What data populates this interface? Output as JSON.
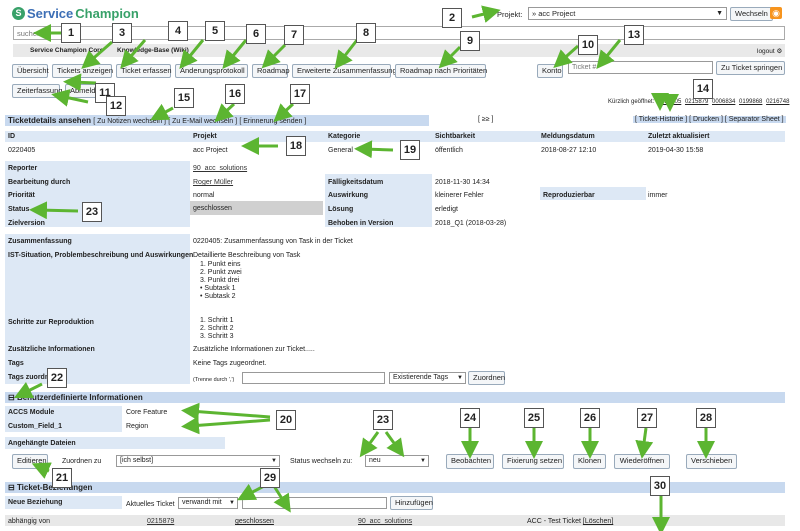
{
  "logo": {
    "service": "Service",
    "champion": "Champion"
  },
  "project": {
    "label": "Projekt:",
    "value": "» acc Project",
    "switch_label": "Wechseln"
  },
  "search": {
    "placeholder": "suchen"
  },
  "crumbs": {
    "core": "Service Champion Core",
    "kb": "Knowledge-Base (Wiki)",
    "logout": "logout ⚙"
  },
  "tabs": [
    "Übersicht",
    "Tickets anzeigen",
    "Ticket erfassen",
    "Änderungsprotokoll",
    "Roadmap",
    "Erweiterte Zusammenfassung",
    "Roadmap nach Prioritäten"
  ],
  "konto": "Konto",
  "ticket_num": {
    "placeholder": "Ticket #",
    "jump_label": "Zu Ticket springen"
  },
  "tabs2": [
    "Zeiterfassung",
    "Abmelden"
  ],
  "recent": {
    "label": "Kürzlich geöffnet:",
    "ids": [
      "0220405",
      "0215879",
      "0006834",
      "0199868",
      "0216748"
    ]
  },
  "details": {
    "title": "Ticketdetails ansehen",
    "link1": "[ Zu Notizen wechseln ]",
    "link2": "[ Zu E-Mail wechseln ]",
    "link3": "[ Erinnerung senden ]",
    "nav": "[ ≥≥ ]",
    "right_links": "[ Ticket-Historie ] [ Drucken ] [ Separator Sheet ]"
  },
  "head": {
    "id": "ID",
    "projekt": "Projekt",
    "kategorie": "Kategorie",
    "sichtbarkeit": "Sichtbarkeit",
    "meldungsdatum": "Meldungsdatum",
    "zuletzt": "Zuletzt aktualisiert"
  },
  "row": {
    "id": "0220405",
    "projekt": "acc Project",
    "kategorie": "General",
    "sichtbarkeit": "öffentlich",
    "meldungsdatum": "2018-08-27 12:10",
    "zuletzt": "2019-04-30 15:58"
  },
  "fields": {
    "reporter_l": "Reporter",
    "reporter": "90_acc_solutions",
    "bearb_l": "Bearbeitung durch",
    "bearb": "Roger Müller",
    "faellig_l": "Fälligkeitsdatum",
    "faellig": "2018-11-30 14:34",
    "prio_l": "Priorität",
    "prio": "normal",
    "ausw_l": "Auswirkung",
    "ausw": "kleinerer Fehler",
    "repro_l": "Reproduzierbar",
    "repro": "immer",
    "status_l": "Status",
    "status": "geschlossen",
    "loesung_l": "Lösung",
    "loesung": "erledigt",
    "ziel_l": "Zielversion",
    "behoben_l": "Behoben in Version",
    "behoben": "2018_Q1 (2018-03-28)",
    "zus_l": "Zusammenfassung",
    "zus": "0220405: Zusammenfassung von Task in der Ticket",
    "ist_l": "IST-Situation, Problembeschreibung und Auswirkungen",
    "ist_intro": "Detaillierte Beschreibung von Task",
    "ist_items": [
      "Punkt eins",
      "Punkt zwei",
      "Punkt drei"
    ],
    "ist_sub": [
      "Subtask 1",
      "Subtask 2"
    ],
    "schritte_l": "Schritte zur Reproduktion",
    "schritte": [
      "Schritt 1",
      "Schritt 2",
      "Schritt 3"
    ],
    "zusinfo_l": "Zusätzliche Informationen",
    "zusinfo": "Zusätzliche Informationen zur Ticket.....",
    "tags_l": "Tags",
    "tags": "Keine Tags zugeordnet.",
    "tagzu_l": "Tags zuordnen",
    "tagzu_hint": "(Trenne durch ',')",
    "tag_existing": "Existierende Tags",
    "tag_btn": "Zuordnen"
  },
  "custom": {
    "title": "Benutzerdefinierte Informationen",
    "f1_l": "ACCS Module",
    "f1": "Core Feature",
    "f2_l": "Custom_Field_1",
    "f2": "Region",
    "files_l": "Angehängte Dateien"
  },
  "actions": {
    "edit": "Editieren",
    "assign_l": "Zuordnen zu",
    "assign": "[ich selbst]",
    "status_l": "Status wechseln zu:",
    "status": "neu",
    "watch": "Beobachten",
    "fix": "Fixierung setzen",
    "clone": "Klonen",
    "reopen": "Wiederöffnen",
    "move": "Verschieben"
  },
  "relations": {
    "title": "Ticket-Beziehungen",
    "new_l": "Neue Beziehung",
    "current": "Aktuelles Ticket",
    "type": "verwandt mit",
    "add": "Hinzufügen",
    "row": {
      "rel": "abhängig von",
      "id": "0215879",
      "status": "geschlossen",
      "user": "90_acc_solutions",
      "summary": "ACC - Test Ticket",
      "del": "[Löschen]"
    }
  },
  "badges": [
    "1",
    "2",
    "3",
    "4",
    "5",
    "6",
    "7",
    "8",
    "9",
    "10",
    "11",
    "12",
    "13",
    "14",
    "15",
    "16",
    "17",
    "18",
    "19",
    "20",
    "21",
    "22",
    "23",
    "23",
    "24",
    "25",
    "26",
    "27",
    "28",
    "29",
    "30"
  ],
  "colors": {
    "arrow": "#5cb531",
    "header": "#c8d9ef",
    "label_bg": "#dde8f5"
  }
}
